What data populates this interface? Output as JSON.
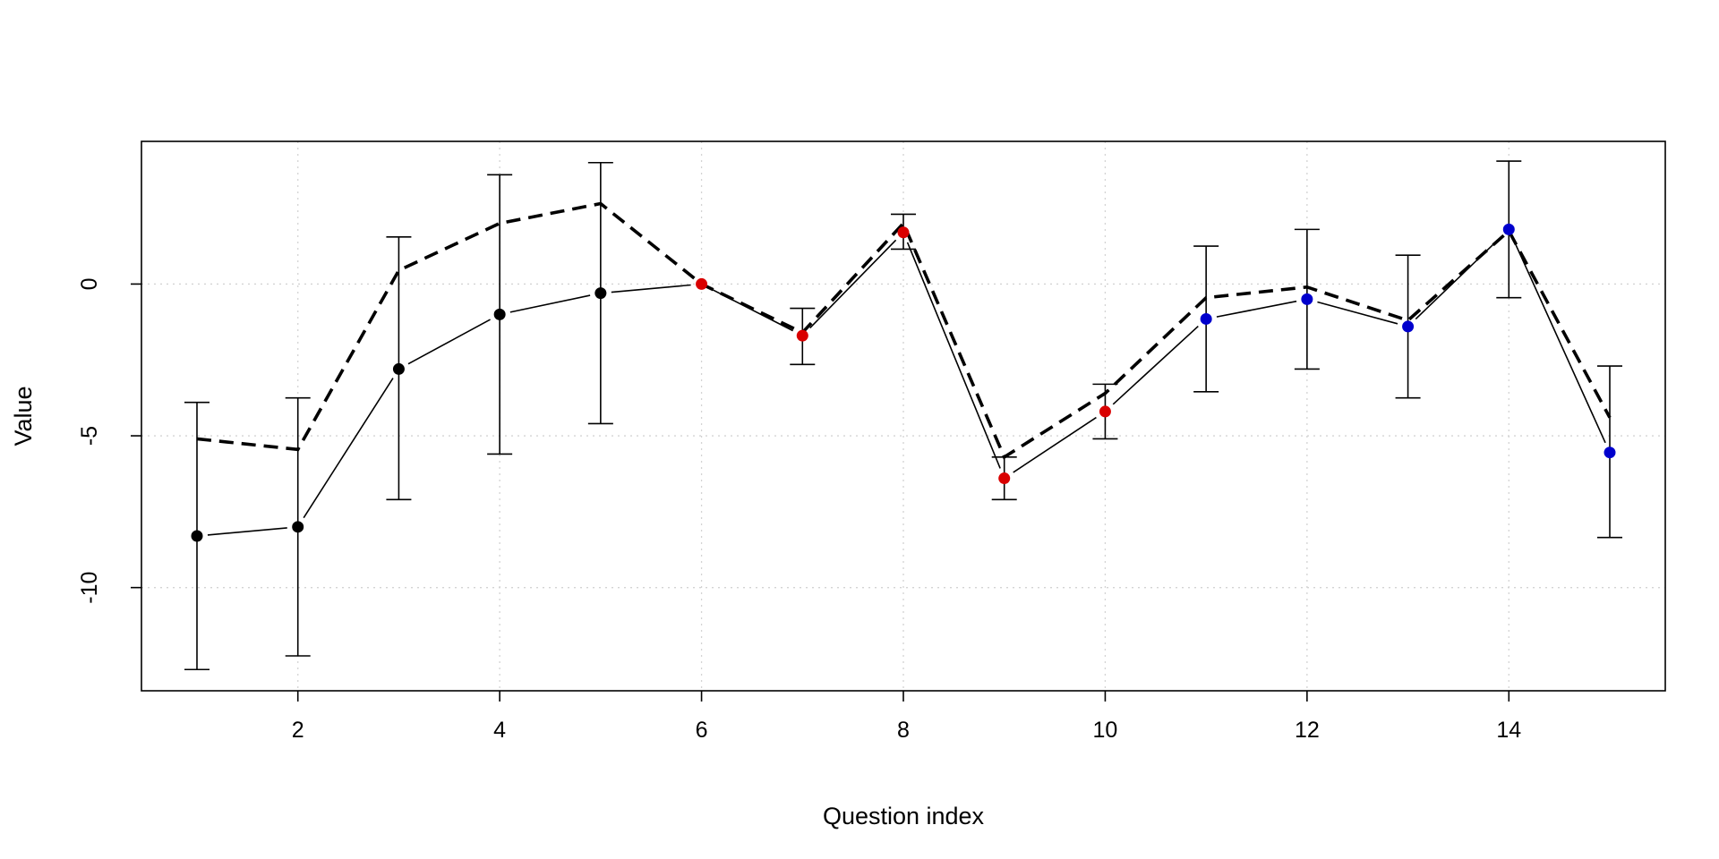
{
  "chart_data": {
    "type": "line",
    "title": "",
    "xlabel": "Question index",
    "ylabel": "Value",
    "xlim": [
      0.45,
      15.55
    ],
    "ylim": [
      -13.4,
      4.7
    ],
    "xticks": [
      2,
      4,
      6,
      8,
      10,
      12,
      14
    ],
    "yticks": [
      -10,
      -5,
      0
    ],
    "grid": true,
    "legend": "none",
    "x": [
      1,
      2,
      3,
      4,
      5,
      6,
      7,
      8,
      9,
      10,
      11,
      12,
      13,
      14,
      15
    ],
    "series": [
      {
        "style": "solid-with-points-and-error-bars",
        "values": [
          -8.3,
          -8.0,
          -2.8,
          -1.0,
          -0.3,
          0.0,
          -1.7,
          1.7,
          -6.4,
          -4.2,
          -1.15,
          -0.5,
          -1.4,
          1.8,
          -5.55
        ],
        "error_low": [
          -12.7,
          -12.25,
          -7.1,
          -5.6,
          -4.6,
          0.0,
          -2.65,
          1.15,
          -7.1,
          -5.1,
          -3.55,
          -2.8,
          -3.75,
          -0.45,
          -8.35
        ],
        "error_high": [
          -3.9,
          -3.75,
          1.55,
          3.6,
          4.0,
          0.0,
          -0.8,
          2.3,
          -5.7,
          -3.3,
          1.25,
          1.8,
          0.95,
          4.05,
          -2.7
        ],
        "point_colors": [
          "#000000",
          "#000000",
          "#000000",
          "#000000",
          "#000000",
          "#d90000",
          "#d90000",
          "#d90000",
          "#d90000",
          "#d90000",
          "#0000cd",
          "#0000cd",
          "#0000cd",
          "#0000cd",
          "#0000cd"
        ]
      },
      {
        "style": "dashed",
        "values": [
          -5.1,
          -5.45,
          0.45,
          2.0,
          2.65,
          0.0,
          -1.6,
          2.0,
          -5.7,
          -3.6,
          -0.45,
          -0.1,
          -1.2,
          1.75,
          -4.4
        ]
      }
    ]
  }
}
